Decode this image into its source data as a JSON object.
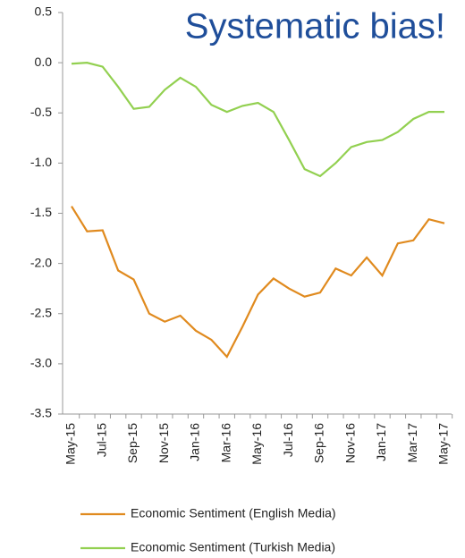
{
  "chart_data": {
    "type": "line",
    "title": "Systematic bias!",
    "categories": [
      "May-15",
      null,
      "Jul-15",
      null,
      "Sep-15",
      null,
      "Nov-15",
      null,
      "Jan-16",
      null,
      "Mar-16",
      null,
      "May-16",
      null,
      "Jul-16",
      null,
      "Sep-16",
      null,
      "Nov-16",
      null,
      "Jan-17",
      null,
      "Mar-17",
      null,
      "May-17"
    ],
    "series": [
      {
        "name": "Economic Sentiment (English Media)",
        "color": "#e08a1e",
        "values": [
          -1.43,
          -1.68,
          -1.67,
          -2.07,
          -2.16,
          -2.5,
          -2.58,
          -2.52,
          -2.67,
          -2.76,
          -2.93,
          -2.63,
          -2.31,
          -2.15,
          -2.25,
          -2.33,
          -2.29,
          -2.05,
          -2.12,
          -1.94,
          -2.12,
          -1.8,
          -1.77,
          -1.56,
          -1.6
        ]
      },
      {
        "name": "Economic Sentiment (Turkish Media)",
        "color": "#92d050",
        "values": [
          -0.01,
          0.0,
          -0.04,
          -0.24,
          -0.46,
          -0.44,
          -0.27,
          -0.15,
          -0.24,
          -0.42,
          -0.49,
          -0.43,
          -0.4,
          -0.49,
          -0.77,
          -1.06,
          -1.13,
          -1.0,
          -0.84,
          -0.79,
          -0.77,
          -0.69,
          -0.56,
          -0.49,
          -0.49
        ]
      }
    ],
    "ylim": [
      -3.5,
      0.5
    ],
    "yticks": [
      0.5,
      {
        "value": 0,
        "label": "0.0"
      },
      -0.5,
      {
        "value": -1,
        "label": "-1.0"
      },
      -1.5,
      {
        "value": -2,
        "label": "-2.0"
      },
      -2.5,
      {
        "value": -3,
        "label": "-3.0"
      },
      -3.5
    ],
    "grid": false
  }
}
